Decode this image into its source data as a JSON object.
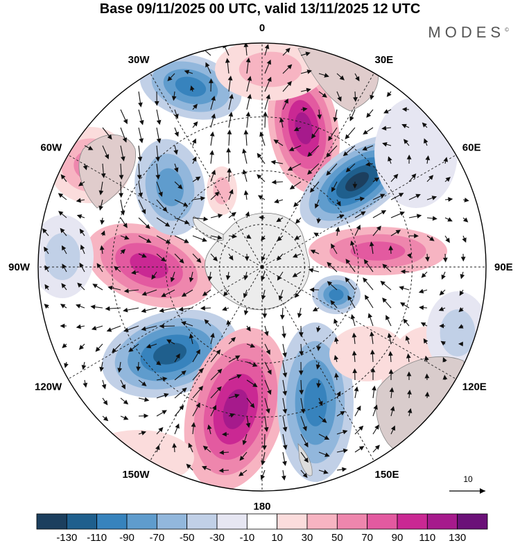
{
  "title": "Base 09/11/2025 00 UTC, valid 13/11/2025 12 UTC",
  "brand": "MODES",
  "brand_mark": "©",
  "longitude_labels": [
    "0",
    "30E",
    "60E",
    "90E",
    "120E",
    "150E",
    "180",
    "150W",
    "120W",
    "90W",
    "60W",
    "30W"
  ],
  "vector_reference": {
    "label": "10"
  },
  "colorbar": {
    "colors": [
      "#1c3f5e",
      "#1f5f8d",
      "#3783bd",
      "#5f9ccd",
      "#92b7dc",
      "#c1d0e7",
      "#e6e6f2",
      "#ffffff",
      "#fbdcdc",
      "#f7b4c2",
      "#ee86ad",
      "#e35aa0",
      "#ca2893",
      "#a61a8c",
      "#6b1178"
    ],
    "tick_labels": [
      "-130",
      "-110",
      "-90",
      "-70",
      "-50",
      "-30",
      "-10",
      "10",
      "30",
      "50",
      "70",
      "90",
      "110",
      "130"
    ]
  }
}
